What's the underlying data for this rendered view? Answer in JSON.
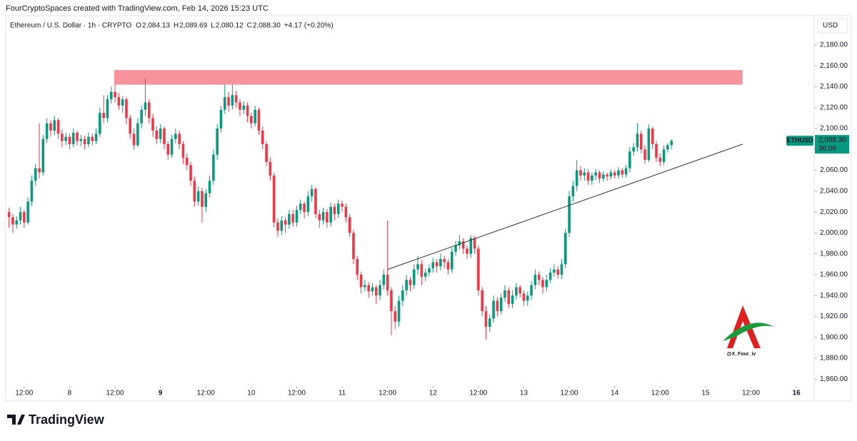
{
  "header": {
    "credit": "FourCryptoSpaces created with TradingView.com, Feb 14, 2026 15:23 UTC"
  },
  "chart_data": {
    "type": "candlestick",
    "symbol": "Ethereum / U.S. Dollar · 1h · CRYPTO",
    "legend_values": [
      {
        "label": "O",
        "value": "2,084.13"
      },
      {
        "label": "H",
        "value": "2,089.69"
      },
      {
        "label": "L",
        "value": "2,080.12"
      },
      {
        "label": "C",
        "value": "2,088.30"
      }
    ],
    "change": "+4.17 (+0.20%)",
    "currency": "USD",
    "symbol_tag": "ETHUSD",
    "last_price_label": "2,088.30",
    "countdown": "36:06",
    "up_color": "#089981",
    "down_color": "#f23645",
    "xlim": [
      7.5,
      220.7
    ],
    "ylim": [
      1854,
      2206
    ],
    "xticks": [
      {
        "value": 12,
        "label": "12:00"
      },
      {
        "value": 24,
        "label": "8"
      },
      {
        "value": 36,
        "label": "12:00"
      },
      {
        "value": 48,
        "label": "9",
        "bold": true
      },
      {
        "value": 60,
        "label": "12:00"
      },
      {
        "value": 72,
        "label": "10"
      },
      {
        "value": 84,
        "label": "12:00"
      },
      {
        "value": 96,
        "label": "11"
      },
      {
        "value": 108,
        "label": "12:00"
      },
      {
        "value": 120,
        "label": "12"
      },
      {
        "value": 132,
        "label": "12:00"
      },
      {
        "value": 144,
        "label": "13"
      },
      {
        "value": 156,
        "label": "12:00"
      },
      {
        "value": 168,
        "label": "14"
      },
      {
        "value": 180,
        "label": "12:00"
      },
      {
        "value": 192,
        "label": "15"
      },
      {
        "value": 204,
        "label": "12:00"
      },
      {
        "value": 216,
        "label": "16",
        "bold": true
      }
    ],
    "yticks": [
      {
        "value": 1860,
        "label": "1,860.00"
      },
      {
        "value": 1880,
        "label": "1,880.00"
      },
      {
        "value": 1900,
        "label": "1,900.00"
      },
      {
        "value": 1920,
        "label": "1,920.00"
      },
      {
        "value": 1940,
        "label": "1,940.00"
      },
      {
        "value": 1960,
        "label": "1,960.00"
      },
      {
        "value": 1980,
        "label": "1,980.00"
      },
      {
        "value": 2000,
        "label": "2,000.00"
      },
      {
        "value": 2020,
        "label": "2,020.00"
      },
      {
        "value": 2040,
        "label": "2,040.00"
      },
      {
        "value": 2060,
        "label": "2,060.00"
      },
      {
        "value": 2080,
        "label": "2,080.00"
      },
      {
        "value": 2100,
        "label": "2,100.00"
      },
      {
        "value": 2120,
        "label": "2,120.00"
      },
      {
        "value": 2140,
        "label": "2,140.00"
      },
      {
        "value": 2160,
        "label": "2,160.00"
      },
      {
        "value": 2180,
        "label": "2,180.00"
      }
    ],
    "zones": [
      {
        "x": [
          35.8,
          201.8
        ],
        "y": [
          2142,
          2156
        ],
        "color": "#f7939d"
      }
    ],
    "trendlines": [
      {
        "x": [
          108,
          201.8
        ],
        "y": [
          1965,
          2085
        ],
        "color": "#333333"
      }
    ],
    "x": [
      8,
      9,
      10,
      11,
      12,
      13,
      14,
      15,
      16,
      17,
      18,
      19,
      20,
      21,
      22,
      23,
      24,
      25,
      26,
      27,
      28,
      29,
      30,
      31,
      32,
      33,
      34,
      35,
      36,
      37,
      38,
      39,
      40,
      41,
      42,
      43,
      44,
      45,
      46,
      47,
      48,
      49,
      50,
      51,
      52,
      53,
      54,
      55,
      56,
      57,
      58,
      59,
      60,
      61,
      62,
      63,
      64,
      65,
      66,
      67,
      68,
      69,
      70,
      71,
      72,
      73,
      74,
      75,
      76,
      77,
      78,
      79,
      80,
      81,
      82,
      83,
      84,
      85,
      86,
      87,
      88,
      89,
      90,
      91,
      92,
      93,
      94,
      95,
      96,
      97,
      98,
      99,
      100,
      101,
      102,
      103,
      104,
      105,
      106,
      107,
      108,
      109,
      110,
      111,
      112,
      113,
      114,
      115,
      116,
      117,
      118,
      119,
      120,
      121,
      122,
      123,
      124,
      125,
      126,
      127,
      128,
      129,
      130,
      131,
      132,
      133,
      134,
      135,
      136,
      137,
      138,
      139,
      140,
      141,
      142,
      143,
      144,
      145,
      146,
      147,
      148,
      149,
      150,
      151,
      152,
      153,
      154,
      155,
      156,
      157,
      158,
      159,
      160,
      161,
      162,
      163,
      164,
      165,
      166,
      167,
      168,
      169,
      170,
      171,
      172,
      173,
      174,
      175,
      176,
      177,
      178,
      179,
      180,
      181,
      182,
      183
    ],
    "ohlc": [
      [
        2020,
        2024,
        2005,
        2015
      ],
      [
        2015,
        2018,
        2000,
        2008
      ],
      [
        2008,
        2016,
        2004,
        2012
      ],
      [
        2012,
        2025,
        2008,
        2020
      ],
      [
        2020,
        2022,
        2005,
        2010
      ],
      [
        2010,
        2034,
        2008,
        2030
      ],
      [
        2030,
        2055,
        2026,
        2050
      ],
      [
        2050,
        2066,
        2045,
        2062
      ],
      [
        2062,
        2105,
        2052,
        2058
      ],
      [
        2058,
        2094,
        2055,
        2090
      ],
      [
        2090,
        2110,
        2086,
        2105
      ],
      [
        2105,
        2108,
        2092,
        2098
      ],
      [
        2098,
        2112,
        2094,
        2108
      ],
      [
        2108,
        2110,
        2090,
        2095
      ],
      [
        2095,
        2099,
        2082,
        2088
      ],
      [
        2088,
        2096,
        2084,
        2092
      ],
      [
        2092,
        2095,
        2080,
        2085
      ],
      [
        2085,
        2100,
        2082,
        2096
      ],
      [
        2096,
        2098,
        2084,
        2088
      ],
      [
        2088,
        2094,
        2083,
        2090
      ],
      [
        2090,
        2093,
        2080,
        2085
      ],
      [
        2085,
        2096,
        2082,
        2092
      ],
      [
        2092,
        2095,
        2084,
        2088
      ],
      [
        2088,
        2100,
        2085,
        2095
      ],
      [
        2095,
        2120,
        2092,
        2115
      ],
      [
        2115,
        2132,
        2105,
        2110
      ],
      [
        2110,
        2132,
        2106,
        2128
      ],
      [
        2128,
        2140,
        2124,
        2135
      ],
      [
        2135,
        2142,
        2125,
        2130
      ],
      [
        2130,
        2134,
        2118,
        2122
      ],
      [
        2122,
        2131,
        2115,
        2128
      ],
      [
        2128,
        2130,
        2104,
        2110
      ],
      [
        2110,
        2113,
        2090,
        2095
      ],
      [
        2095,
        2100,
        2080,
        2084
      ],
      [
        2084,
        2110,
        2082,
        2105
      ],
      [
        2105,
        2122,
        2100,
        2118
      ],
      [
        2118,
        2148,
        2112,
        2125
      ],
      [
        2125,
        2128,
        2105,
        2110
      ],
      [
        2110,
        2114,
        2092,
        2098
      ],
      [
        2098,
        2102,
        2085,
        2090
      ],
      [
        2090,
        2104,
        2086,
        2100
      ],
      [
        2100,
        2102,
        2080,
        2085
      ],
      [
        2085,
        2088,
        2070,
        2075
      ],
      [
        2075,
        2094,
        2072,
        2090
      ],
      [
        2090,
        2100,
        2086,
        2095
      ],
      [
        2095,
        2098,
        2080,
        2085
      ],
      [
        2085,
        2088,
        2066,
        2072
      ],
      [
        2072,
        2076,
        2060,
        2065
      ],
      [
        2065,
        2068,
        2045,
        2050
      ],
      [
        2050,
        2054,
        2025,
        2030
      ],
      [
        2030,
        2045,
        2026,
        2040
      ],
      [
        2040,
        2043,
        2010,
        2025
      ],
      [
        2025,
        2042,
        2020,
        2038
      ],
      [
        2038,
        2055,
        2034,
        2050
      ],
      [
        2050,
        2080,
        2046,
        2075
      ],
      [
        2075,
        2104,
        2070,
        2100
      ],
      [
        2100,
        2122,
        2096,
        2118
      ],
      [
        2118,
        2142,
        2114,
        2130
      ],
      [
        2130,
        2135,
        2116,
        2122
      ],
      [
        2122,
        2142,
        2118,
        2132
      ],
      [
        2132,
        2136,
        2120,
        2125
      ],
      [
        2125,
        2128,
        2112,
        2118
      ],
      [
        2118,
        2126,
        2114,
        2122
      ],
      [
        2122,
        2125,
        2106,
        2112
      ],
      [
        2112,
        2115,
        2100,
        2105
      ],
      [
        2105,
        2122,
        2102,
        2118
      ],
      [
        2118,
        2120,
        2094,
        2098
      ],
      [
        2098,
        2102,
        2080,
        2085
      ],
      [
        2085,
        2088,
        2064,
        2068
      ],
      [
        2068,
        2072,
        2050,
        2055
      ],
      [
        2055,
        2058,
        2005,
        2010
      ],
      [
        2010,
        2014,
        1996,
        2002
      ],
      [
        2002,
        2016,
        1998,
        2012
      ],
      [
        2012,
        2015,
        2000,
        2008
      ],
      [
        2008,
        2022,
        2004,
        2018
      ],
      [
        2018,
        2022,
        2006,
        2010
      ],
      [
        2010,
        2026,
        2006,
        2022
      ],
      [
        2022,
        2032,
        2018,
        2028
      ],
      [
        2028,
        2030,
        2014,
        2020
      ],
      [
        2020,
        2040,
        2016,
        2035
      ],
      [
        2035,
        2046,
        2030,
        2042
      ],
      [
        2042,
        2044,
        2014,
        2018
      ],
      [
        2018,
        2022,
        2005,
        2012
      ],
      [
        2012,
        2024,
        2008,
        2020
      ],
      [
        2020,
        2023,
        2005,
        2010
      ],
      [
        2010,
        2029,
        2006,
        2025
      ],
      [
        2025,
        2028,
        2012,
        2018
      ],
      [
        2018,
        2032,
        2014,
        2028
      ],
      [
        2028,
        2031,
        2020,
        2025
      ],
      [
        2025,
        2028,
        2010,
        2015
      ],
      [
        2015,
        2018,
        1996,
        2000
      ],
      [
        2000,
        2003,
        1970,
        1975
      ],
      [
        1975,
        1978,
        1955,
        1960
      ],
      [
        1960,
        1963,
        1942,
        1948
      ],
      [
        1948,
        1955,
        1944,
        1950
      ],
      [
        1950,
        1953,
        1938,
        1944
      ],
      [
        1944,
        1952,
        1940,
        1948
      ],
      [
        1948,
        1950,
        1932,
        1940
      ],
      [
        1940,
        1955,
        1936,
        1950
      ],
      [
        1950,
        1965,
        1946,
        1960
      ],
      [
        1960,
        2012,
        1940,
        1945
      ],
      [
        1945,
        1948,
        1902,
        1925
      ],
      [
        1925,
        1930,
        1908,
        1915
      ],
      [
        1915,
        1940,
        1910,
        1935
      ],
      [
        1935,
        1950,
        1930,
        1945
      ],
      [
        1945,
        1960,
        1940,
        1955
      ],
      [
        1955,
        1958,
        1944,
        1950
      ],
      [
        1950,
        1970,
        1946,
        1965
      ],
      [
        1965,
        1978,
        1960,
        1970
      ],
      [
        1970,
        1974,
        1950,
        1958
      ],
      [
        1958,
        1966,
        1954,
        1962
      ],
      [
        1962,
        1970,
        1958,
        1966
      ],
      [
        1966,
        1976,
        1962,
        1972
      ],
      [
        1972,
        1975,
        1962,
        1968
      ],
      [
        1968,
        1980,
        1964,
        1975
      ],
      [
        1975,
        1978,
        1966,
        1972
      ],
      [
        1972,
        1975,
        1960,
        1965
      ],
      [
        1965,
        1986,
        1962,
        1982
      ],
      [
        1982,
        1992,
        1978,
        1988
      ],
      [
        1988,
        1998,
        1984,
        1992
      ],
      [
        1992,
        1995,
        1980,
        1985
      ],
      [
        1985,
        1988,
        1975,
        1980
      ],
      [
        1980,
        1998,
        1976,
        1995
      ],
      [
        1995,
        1997,
        1980,
        1985
      ],
      [
        1985,
        1988,
        1940,
        1945
      ],
      [
        1945,
        1948,
        1920,
        1925
      ],
      [
        1925,
        1930,
        1898,
        1910
      ],
      [
        1910,
        1922,
        1905,
        1918
      ],
      [
        1918,
        1940,
        1914,
        1935
      ],
      [
        1935,
        1938,
        1920,
        1925
      ],
      [
        1925,
        1942,
        1922,
        1938
      ],
      [
        1938,
        1950,
        1934,
        1945
      ],
      [
        1945,
        1948,
        1928,
        1932
      ],
      [
        1932,
        1945,
        1928,
        1940
      ],
      [
        1940,
        1952,
        1936,
        1948
      ],
      [
        1948,
        1950,
        1938,
        1942
      ],
      [
        1942,
        1945,
        1930,
        1935
      ],
      [
        1935,
        1944,
        1930,
        1940
      ],
      [
        1940,
        1954,
        1936,
        1950
      ],
      [
        1950,
        1965,
        1946,
        1960
      ],
      [
        1960,
        1963,
        1950,
        1955
      ],
      [
        1955,
        1958,
        1942,
        1948
      ],
      [
        1948,
        1960,
        1944,
        1955
      ],
      [
        1955,
        1966,
        1952,
        1962
      ],
      [
        1962,
        1970,
        1958,
        1965
      ],
      [
        1965,
        1968,
        1956,
        1960
      ],
      [
        1960,
        1975,
        1956,
        1970
      ],
      [
        1970,
        2004,
        1966,
        2000
      ],
      [
        2000,
        2040,
        1996,
        2035
      ],
      [
        2035,
        2050,
        2030,
        2045
      ],
      [
        2045,
        2070,
        2040,
        2060
      ],
      [
        2060,
        2064,
        2050,
        2055
      ],
      [
        2055,
        2062,
        2050,
        2058
      ],
      [
        2058,
        2061,
        2046,
        2050
      ],
      [
        2050,
        2058,
        2046,
        2055
      ],
      [
        2055,
        2061,
        2051,
        2058
      ],
      [
        2058,
        2060,
        2048,
        2052
      ],
      [
        2052,
        2059,
        2049,
        2056
      ],
      [
        2056,
        2058,
        2050,
        2054
      ],
      [
        2054,
        2061,
        2051,
        2058
      ],
      [
        2058,
        2060,
        2052,
        2055
      ],
      [
        2055,
        2063,
        2052,
        2060
      ],
      [
        2060,
        2062,
        2053,
        2056
      ],
      [
        2056,
        2065,
        2053,
        2062
      ],
      [
        2062,
        2082,
        2058,
        2078
      ],
      [
        2078,
        2086,
        2074,
        2082
      ],
      [
        2082,
        2105,
        2078,
        2095
      ],
      [
        2095,
        2098,
        2076,
        2080
      ],
      [
        2080,
        2084,
        2066,
        2070
      ],
      [
        2070,
        2104,
        2068,
        2100
      ],
      [
        2100,
        2102,
        2080,
        2085
      ],
      [
        2085,
        2088,
        2068,
        2072
      ],
      [
        2072,
        2076,
        2064,
        2068
      ],
      [
        2068,
        2084,
        2065,
        2080
      ],
      [
        2080,
        2086,
        2077,
        2084.13
      ],
      [
        2084.13,
        2089.69,
        2080.12,
        2088.3
      ]
    ]
  },
  "watermark": "@X_Four_iv",
  "footer": {
    "brand": "TradingView"
  }
}
